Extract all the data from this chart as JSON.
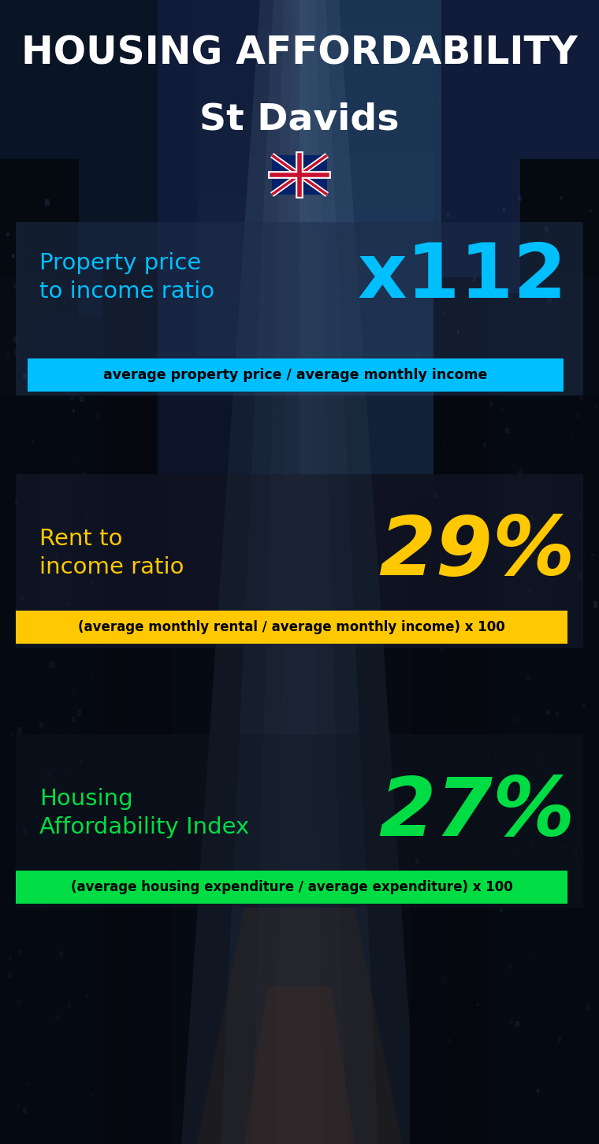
{
  "title_line1": "HOUSING AFFORDABILITY",
  "title_line2": "St Davids",
  "section1_label": "Property price\nto income ratio",
  "section1_value": "x112",
  "section1_sublabel": "average property price / average monthly income",
  "section1_label_color": "#00bfff",
  "section1_value_color": "#00bfff",
  "section1_bar_color": "#00bfff",
  "section1_sublabel_color": "#000000",
  "section2_label": "Rent to\nincome ratio",
  "section2_value": "29%",
  "section2_sublabel": "(average monthly rental / average monthly income) x 100",
  "section2_label_color": "#ffc800",
  "section2_value_color": "#ffc800",
  "section2_bar_color": "#ffc800",
  "section2_sublabel_color": "#000000",
  "section3_label": "Housing\nAffordability Index",
  "section3_value": "27%",
  "section3_sublabel": "(average housing expenditure / average expenditure) x 100",
  "section3_label_color": "#00dd44",
  "section3_value_color": "#00dd44",
  "section3_bar_color": "#00dd44",
  "section3_sublabel_color": "#000000",
  "bg_color": "#080c14",
  "title_color": "#ffffff",
  "mid_sky_color": "#1a3a5c",
  "panel1_bg": "#1e2d4a",
  "panel2_bg": "#1a2035",
  "panel3_bg": "#111825"
}
